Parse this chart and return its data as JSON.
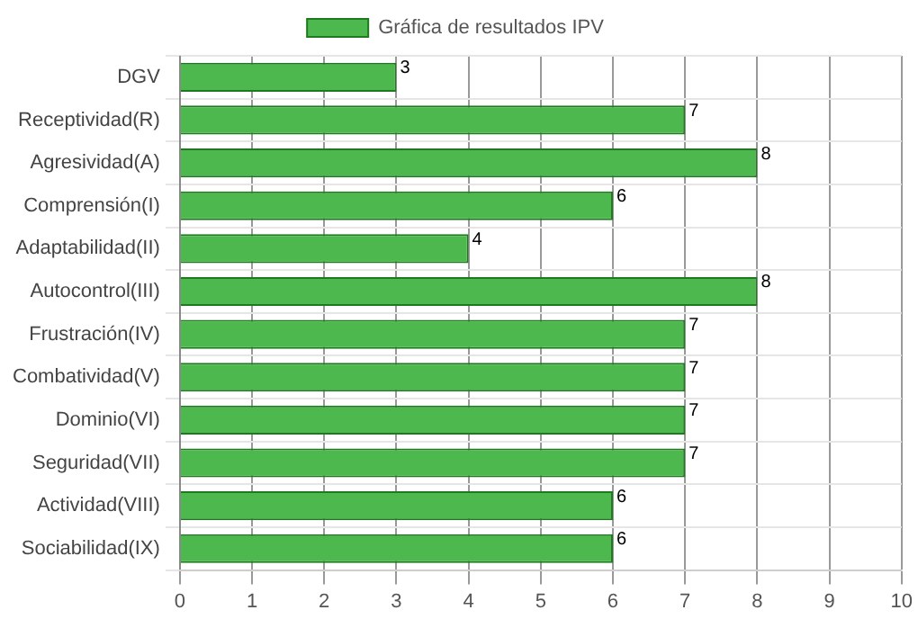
{
  "chart_data": {
    "type": "bar",
    "orientation": "horizontal",
    "categories": [
      "DGV",
      "Receptividad(R)",
      "Agresividad(A)",
      "Comprensión(I)",
      "Adaptabilidad(II)",
      "Autocontrol(III)",
      "Frustración(IV)",
      "Combatividad(V)",
      "Dominio(VI)",
      "Seguridad(VII)",
      "Actividad(VIII)",
      "Sociabilidad(IX)"
    ],
    "series": [
      {
        "name": "Gráfica de resultados IPV",
        "color": "#4db84d",
        "values": [
          3,
          7,
          8,
          6,
          4,
          8,
          7,
          7,
          7,
          7,
          6,
          6
        ]
      }
    ],
    "xlim": [
      0,
      10
    ],
    "xticks": [
      0,
      1,
      2,
      3,
      4,
      5,
      6,
      7,
      8,
      9,
      10
    ],
    "grid": true,
    "legend": "top",
    "data_labels": true
  }
}
